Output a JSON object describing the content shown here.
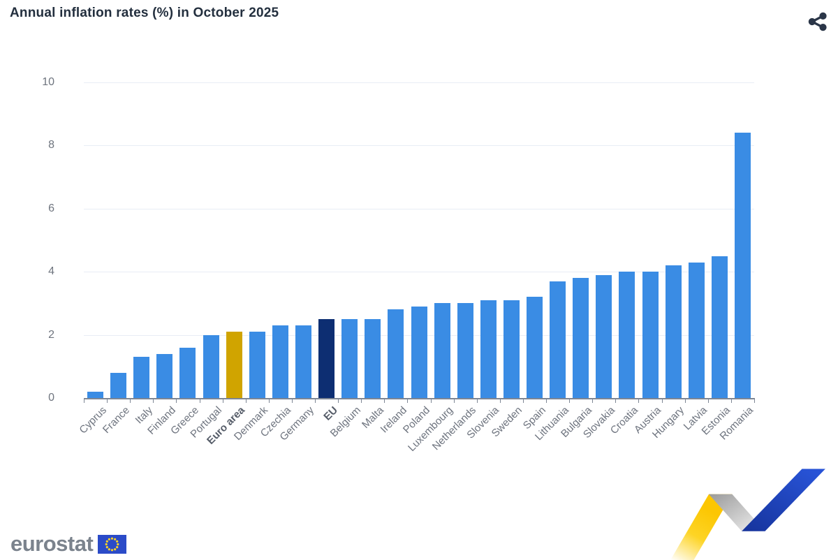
{
  "header": {
    "title": "Annual inflation rates (%) in October 2025",
    "share_icon": "share"
  },
  "chart_data": {
    "type": "bar",
    "title": "Annual inflation rates (%) in October 2025",
    "categories": [
      "Cyprus",
      "France",
      "Italy",
      "Finland",
      "Greece",
      "Portugal",
      "Euro area",
      "Denmark",
      "Czechia",
      "Germany",
      "EU",
      "Belgium",
      "Malta",
      "Ireland",
      "Poland",
      "Luxembourg",
      "Netherlands",
      "Slovenia",
      "Sweden",
      "Spain",
      "Lithuania",
      "Bulgaria",
      "Slovakia",
      "Croatia",
      "Austria",
      "Hungary",
      "Latvia",
      "Estonia",
      "Romania"
    ],
    "values": [
      0.2,
      0.8,
      1.3,
      1.4,
      1.6,
      2.0,
      2.1,
      2.1,
      2.3,
      2.3,
      2.5,
      2.5,
      2.5,
      2.8,
      2.9,
      3.0,
      3.0,
      3.1,
      3.1,
      3.2,
      3.7,
      3.8,
      3.9,
      4.0,
      4.0,
      4.2,
      4.3,
      4.5,
      8.4
    ],
    "emphasized_categories": [
      "Euro area",
      "EU"
    ],
    "bar_colors": {
      "default": "#3a8ce4",
      "Euro area": "#d0a400",
      "EU": "#0d2e72"
    },
    "xlabel": "",
    "ylabel": "",
    "ylim": [
      0,
      10
    ],
    "yticks": [
      0,
      2,
      4,
      6,
      8,
      10
    ],
    "grid": "horizontal",
    "legend": "none"
  },
  "footer": {
    "brand": "eurostat"
  },
  "colors": {
    "title_text": "#232f3e",
    "axis_line": "#7d8694",
    "grid_line": "#e8edf5",
    "tick_label": "#6e747e",
    "category_label": "#6d737e",
    "share_icon": "#2b3648",
    "flag_blue": "#2b4bc8",
    "flag_stars": "#f8d12a",
    "ribbon_yellow": "#fcc602",
    "ribbon_blue": "#2450c8",
    "ribbon_gray": "#a9a9a9"
  }
}
